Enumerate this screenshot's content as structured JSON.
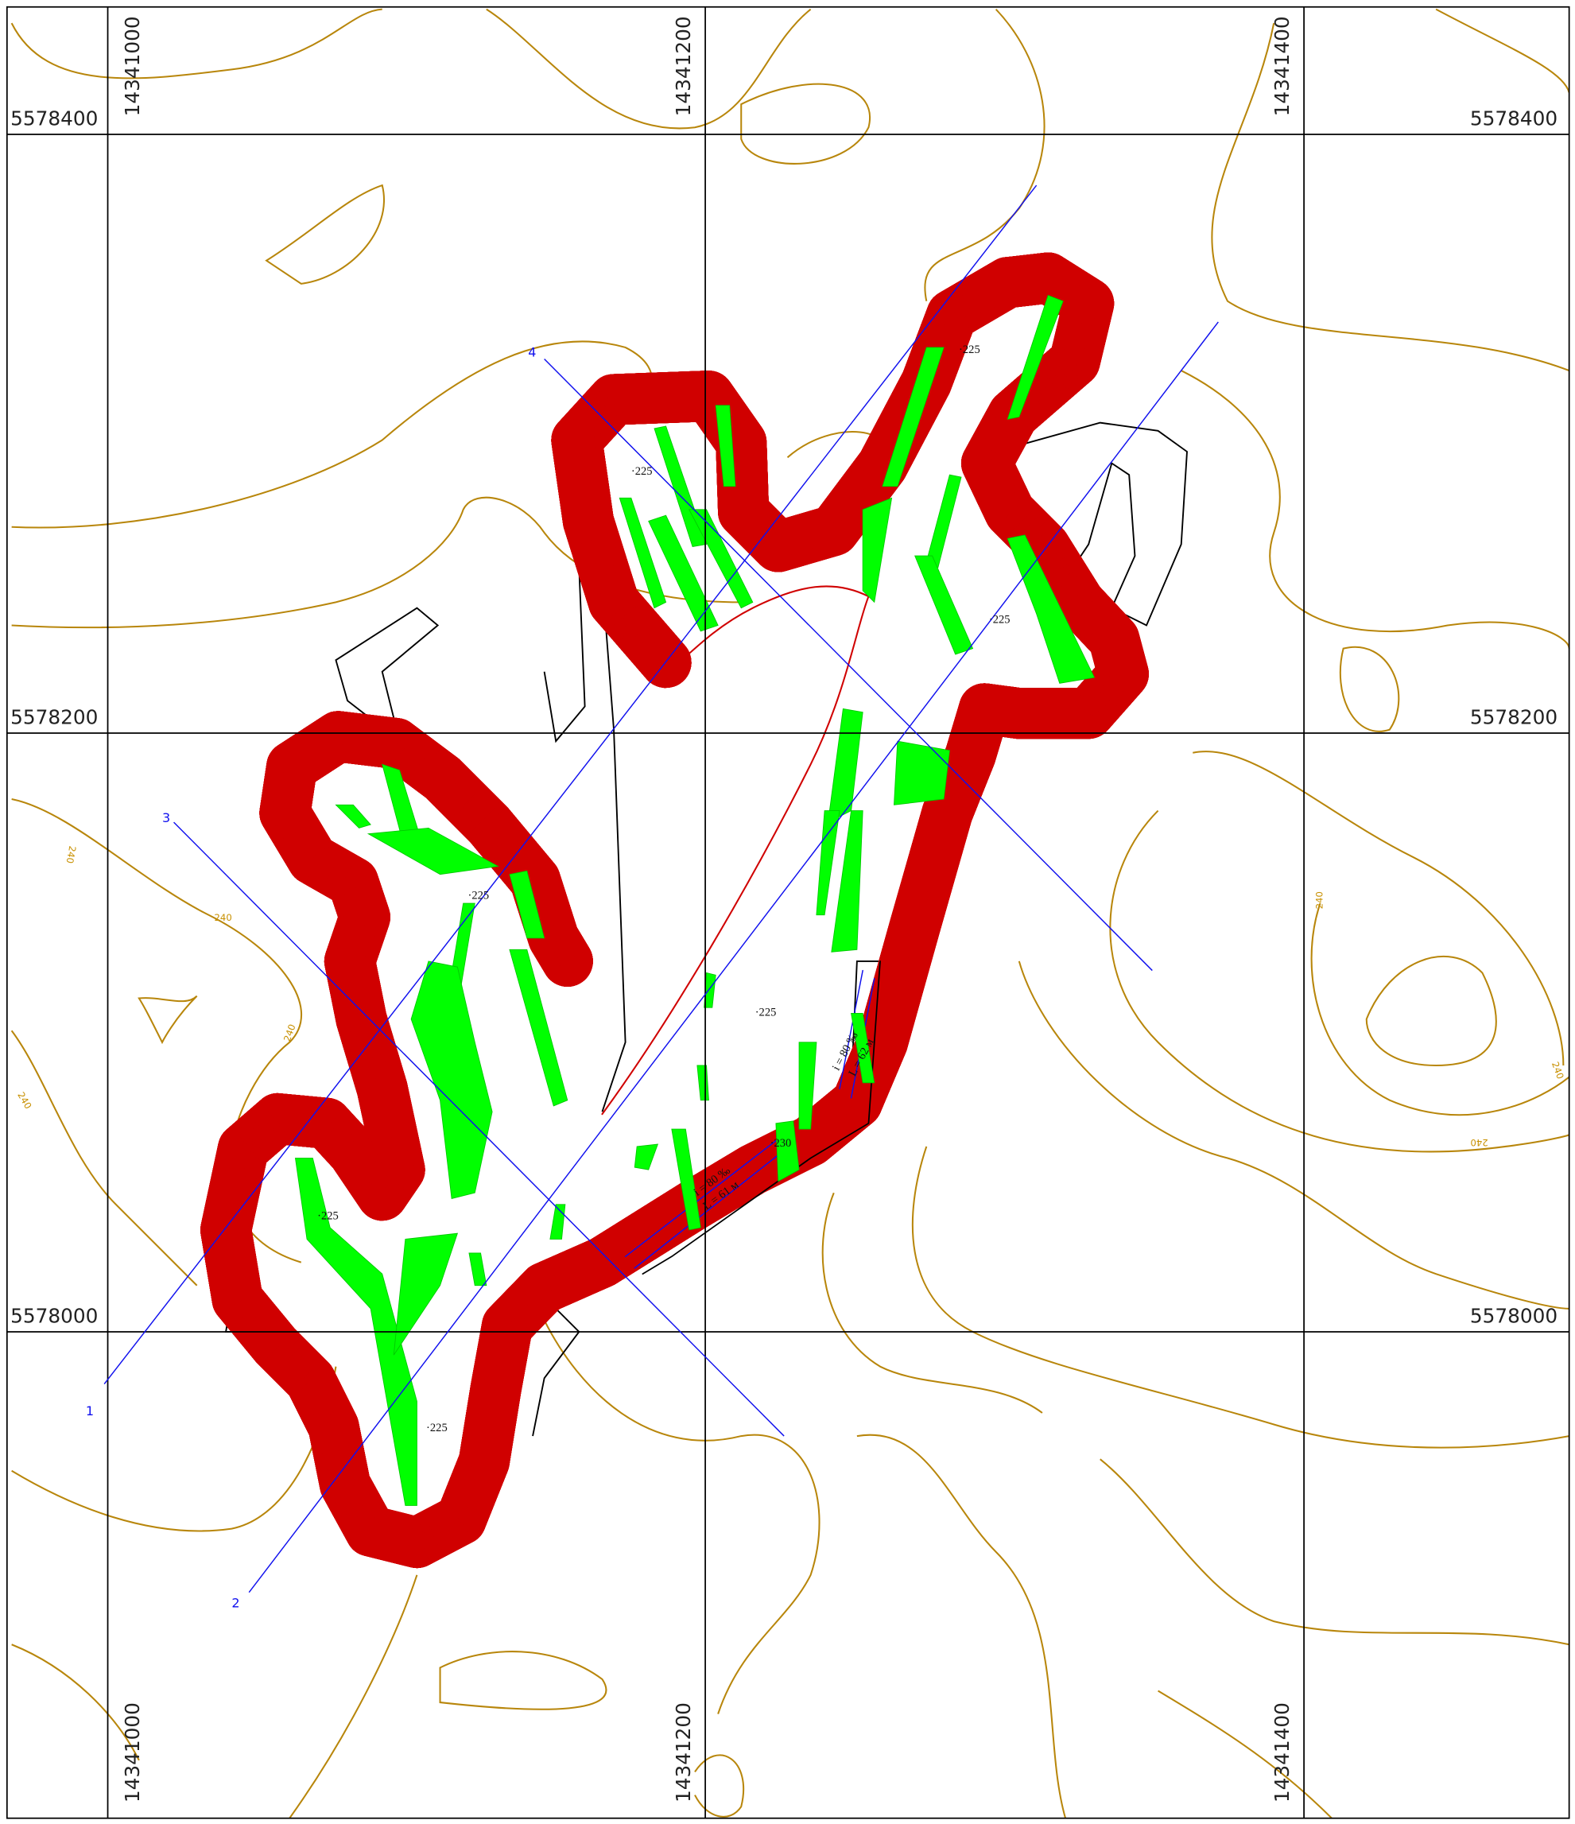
{
  "grid": {
    "northings": [
      5578400,
      5578200,
      5578000
    ],
    "eastings": [
      14341000,
      14341200,
      14341400
    ]
  },
  "profiles": [
    "1",
    "2",
    "3",
    "4"
  ],
  "elevations": [
    "·225",
    "·225",
    "·225",
    "·225",
    "·225",
    "·230",
    "·225",
    "·225"
  ],
  "slopes": [
    {
      "grade": "i = 80 ‰",
      "length": "L = 62 м"
    },
    {
      "grade": "i = 80 ‰",
      "length": "L = 61 м"
    }
  ],
  "contour_labels": [
    "240",
    "240",
    "240",
    "240",
    "240",
    "240",
    "240"
  ]
}
